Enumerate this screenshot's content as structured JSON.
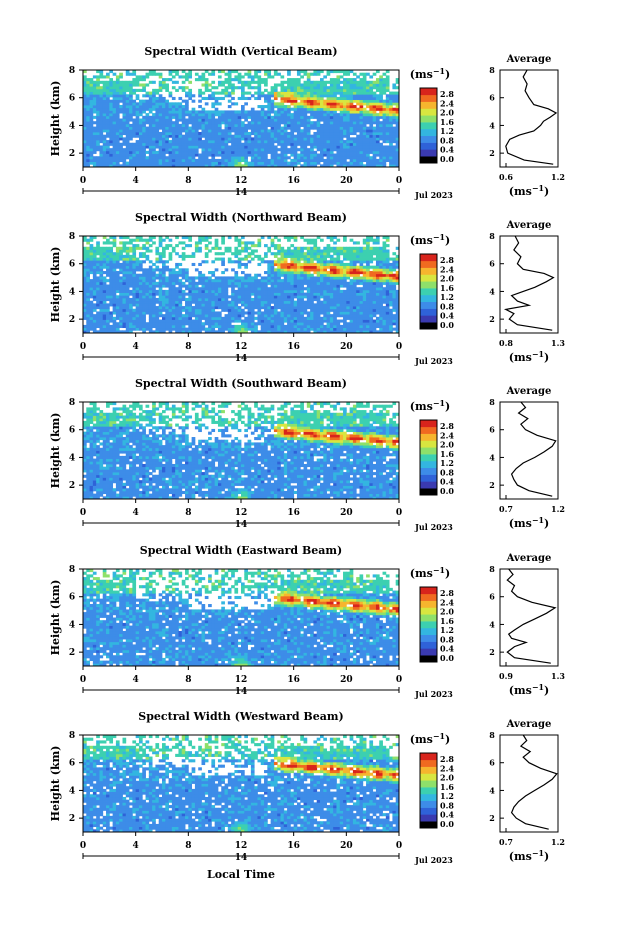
{
  "figure": {
    "xlabel": "Local Time",
    "date_label": "Jul 2023",
    "day_label": "14",
    "x_ticks": [
      "0",
      "4",
      "8",
      "12",
      "16",
      "20",
      "0"
    ],
    "y_label": "Height (km)",
    "y_ticks": [
      "2",
      "4",
      "6",
      "8"
    ],
    "colorbar_unit": "(ms",
    "colorbar_unit_sup": "−1",
    "colorbar_unit_close": ")",
    "colorbar_ticks": [
      "0.0",
      "0.4",
      "0.8",
      "1.2",
      "1.6",
      "2.0",
      "2.4",
      "2.8"
    ],
    "colorbar_colors": [
      "#000000",
      "#3a3ab0",
      "#2f62d8",
      "#3d8ce8",
      "#33b6e0",
      "#3cd0b0",
      "#8ee06a",
      "#d8e640",
      "#f6b52e",
      "#f06a20",
      "#d8241c"
    ],
    "avg_title": "Average",
    "avg_unit": "(ms",
    "avg_unit_sup": "−1",
    "avg_unit_close": ")"
  },
  "chart_data": [
    {
      "type": "heatmap",
      "title": "Spectral Width (Vertical Beam)",
      "xlabel": "",
      "ylabel": "Height (km)",
      "xlim": [
        0,
        24
      ],
      "ylim": [
        1,
        8
      ],
      "colorbar_range": [
        0.0,
        2.8
      ],
      "avg_profile": {
        "xlim": [
          0.6,
          1.2
        ],
        "x_ticks": [
          "0.6",
          "1.2"
        ],
        "y_ticks": [
          "2",
          "4",
          "6",
          "8"
        ],
        "height": [
          1.2,
          1.5,
          2.0,
          2.5,
          3.0,
          3.3,
          3.6,
          4.0,
          4.3,
          4.6,
          4.9,
          5.2,
          5.5,
          6.0,
          6.5,
          7.0,
          7.5,
          8.0
        ],
        "value": [
          1.15,
          0.85,
          0.68,
          0.66,
          0.7,
          0.8,
          0.95,
          1.02,
          1.05,
          1.12,
          1.18,
          1.1,
          0.95,
          0.9,
          0.86,
          0.88,
          0.84,
          0.88
        ]
      }
    },
    {
      "type": "heatmap",
      "title": "Spectral Width (Northward Beam)",
      "xlabel": "",
      "ylabel": "Height (km)",
      "xlim": [
        0,
        24
      ],
      "ylim": [
        1,
        8
      ],
      "colorbar_range": [
        0.0,
        2.8
      ],
      "avg_profile": {
        "xlim": [
          0.8,
          1.3
        ],
        "x_ticks": [
          "0.8",
          "1.3"
        ],
        "y_ticks": [
          "2",
          "4",
          "6",
          "8"
        ],
        "height": [
          1.2,
          1.6,
          2.0,
          2.4,
          2.7,
          3.0,
          3.3,
          3.7,
          4.0,
          4.3,
          4.7,
          5.0,
          5.3,
          5.6,
          6.0,
          6.5,
          7.0,
          7.5,
          8.0
        ],
        "value": [
          1.25,
          0.95,
          0.88,
          0.92,
          0.85,
          1.05,
          0.95,
          0.9,
          1.0,
          1.1,
          1.2,
          1.26,
          1.18,
          1.0,
          0.95,
          0.98,
          0.92,
          0.96,
          0.93
        ]
      }
    },
    {
      "type": "heatmap",
      "title": "Spectral Width (Southward Beam)",
      "xlabel": "",
      "ylabel": "Height (km)",
      "xlim": [
        0,
        24
      ],
      "ylim": [
        1,
        8
      ],
      "colorbar_range": [
        0.0,
        2.8
      ],
      "avg_profile": {
        "xlim": [
          0.7,
          1.2
        ],
        "x_ticks": [
          "0.7",
          "1.2"
        ],
        "y_ticks": [
          "2",
          "4",
          "6",
          "8"
        ],
        "height": [
          1.2,
          1.6,
          2.0,
          2.4,
          2.8,
          3.2,
          3.6,
          4.0,
          4.4,
          4.8,
          5.2,
          5.6,
          6.0,
          6.4,
          6.8,
          7.2,
          7.6,
          8.0
        ],
        "value": [
          1.15,
          0.95,
          0.85,
          0.82,
          0.8,
          0.84,
          0.9,
          1.0,
          1.08,
          1.15,
          1.18,
          1.02,
          0.92,
          0.88,
          0.94,
          0.86,
          0.92,
          0.88
        ]
      }
    },
    {
      "type": "heatmap",
      "title": "Spectral Width (Eastward Beam)",
      "xlabel": "",
      "ylabel": "Height (km)",
      "xlim": [
        0,
        24
      ],
      "ylim": [
        1,
        8
      ],
      "colorbar_range": [
        0.0,
        2.8
      ],
      "avg_profile": {
        "xlim": [
          0.9,
          1.3
        ],
        "x_ticks": [
          "0.9",
          "1.3"
        ],
        "y_ticks": [
          "2",
          "4",
          "6",
          "8"
        ],
        "height": [
          1.2,
          1.6,
          2.0,
          2.4,
          2.7,
          3.0,
          3.3,
          3.6,
          4.0,
          4.4,
          4.8,
          5.2,
          5.6,
          6.0,
          6.4,
          6.8,
          7.2,
          7.6,
          8.0
        ],
        "value": [
          1.25,
          1.0,
          0.95,
          1.0,
          1.08,
          0.98,
          0.96,
          1.0,
          1.06,
          1.14,
          1.22,
          1.28,
          1.12,
          1.02,
          0.98,
          1.0,
          0.95,
          0.99,
          0.96
        ]
      }
    },
    {
      "type": "heatmap",
      "title": "Spectral Width (Westward Beam)",
      "xlabel": "Local Time",
      "ylabel": "Height (km)",
      "xlim": [
        0,
        24
      ],
      "ylim": [
        1,
        8
      ],
      "colorbar_range": [
        0.0,
        2.8
      ],
      "avg_profile": {
        "xlim": [
          0.7,
          1.2
        ],
        "x_ticks": [
          "0.7",
          "1.2"
        ],
        "y_ticks": [
          "2",
          "4",
          "6",
          "8"
        ],
        "height": [
          1.2,
          1.6,
          2.0,
          2.4,
          2.8,
          3.2,
          3.6,
          4.0,
          4.4,
          4.8,
          5.2,
          5.6,
          6.0,
          6.4,
          6.8,
          7.2,
          7.6,
          8.0
        ],
        "value": [
          1.12,
          0.92,
          0.84,
          0.8,
          0.82,
          0.86,
          0.92,
          1.0,
          1.08,
          1.15,
          1.19,
          1.05,
          0.95,
          0.9,
          0.96,
          0.88,
          0.93,
          0.9
        ]
      }
    }
  ]
}
